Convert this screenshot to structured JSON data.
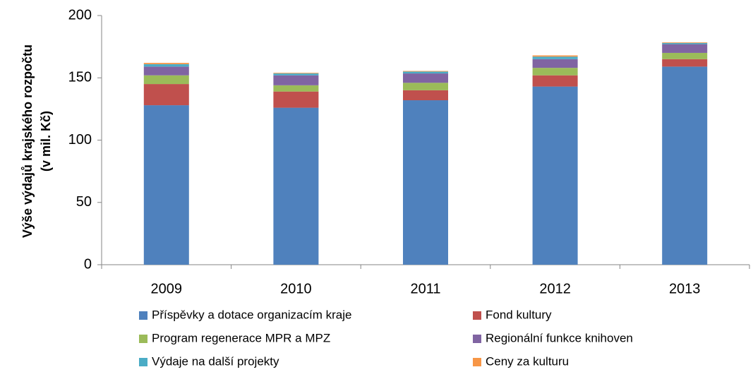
{
  "chart_data": {
    "type": "stacked_bar",
    "ylabel": [
      "Výše výdajů krajského rozpočtu",
      "(v mil. Kč)"
    ],
    "categories": [
      "2009",
      "2010",
      "2011",
      "2012",
      "2013"
    ],
    "series": [
      {
        "name": "Příspěvky a dotace organizacím kraje",
        "color": "#4f81bd",
        "values": [
          128,
          126,
          132,
          143,
          159
        ]
      },
      {
        "name": "Fond kultury",
        "color": "#c0504d",
        "values": [
          17,
          13,
          8,
          9,
          6
        ]
      },
      {
        "name": "Program regenerace MPR a MPZ",
        "color": "#9bbb59",
        "values": [
          7,
          5,
          6,
          6,
          5
        ]
      },
      {
        "name": "Regionální funkce knihoven",
        "color": "#8064a2",
        "values": [
          7,
          8,
          7.5,
          7,
          7
        ]
      },
      {
        "name": "Výdaje na další projekty",
        "color": "#4bacc6",
        "values": [
          2,
          1.5,
          1.5,
          2,
          1
        ]
      },
      {
        "name": "Ceny za kulturu",
        "color": "#f79646",
        "values": [
          1,
          0.5,
          0.5,
          1,
          0.5
        ]
      }
    ],
    "ylim": [
      0,
      200
    ],
    "yticks": [
      0,
      50,
      100,
      150,
      200
    ],
    "grid": false
  }
}
